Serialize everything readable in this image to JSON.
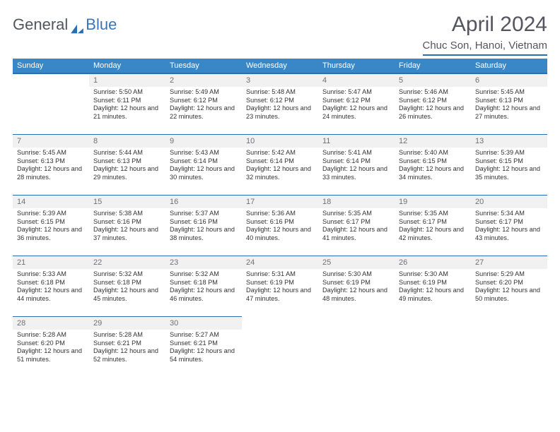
{
  "brand": {
    "part1": "General",
    "part2": "Blue"
  },
  "title": "April 2024",
  "location": "Chuc Son, Hanoi, Vietnam",
  "colors": {
    "header_bg": "#3a87c8",
    "header_border": "#2a6eb4",
    "daynum_bg": "#f1f1f1",
    "text": "#333333",
    "muted": "#555560"
  },
  "weekdays": [
    "Sunday",
    "Monday",
    "Tuesday",
    "Wednesday",
    "Thursday",
    "Friday",
    "Saturday"
  ],
  "start_offset": 1,
  "days": [
    {
      "n": 1,
      "sunrise": "5:50 AM",
      "sunset": "6:11 PM",
      "daylight": "12 hours and 21 minutes."
    },
    {
      "n": 2,
      "sunrise": "5:49 AM",
      "sunset": "6:12 PM",
      "daylight": "12 hours and 22 minutes."
    },
    {
      "n": 3,
      "sunrise": "5:48 AM",
      "sunset": "6:12 PM",
      "daylight": "12 hours and 23 minutes."
    },
    {
      "n": 4,
      "sunrise": "5:47 AM",
      "sunset": "6:12 PM",
      "daylight": "12 hours and 24 minutes."
    },
    {
      "n": 5,
      "sunrise": "5:46 AM",
      "sunset": "6:12 PM",
      "daylight": "12 hours and 26 minutes."
    },
    {
      "n": 6,
      "sunrise": "5:45 AM",
      "sunset": "6:13 PM",
      "daylight": "12 hours and 27 minutes."
    },
    {
      "n": 7,
      "sunrise": "5:45 AM",
      "sunset": "6:13 PM",
      "daylight": "12 hours and 28 minutes."
    },
    {
      "n": 8,
      "sunrise": "5:44 AM",
      "sunset": "6:13 PM",
      "daylight": "12 hours and 29 minutes."
    },
    {
      "n": 9,
      "sunrise": "5:43 AM",
      "sunset": "6:14 PM",
      "daylight": "12 hours and 30 minutes."
    },
    {
      "n": 10,
      "sunrise": "5:42 AM",
      "sunset": "6:14 PM",
      "daylight": "12 hours and 32 minutes."
    },
    {
      "n": 11,
      "sunrise": "5:41 AM",
      "sunset": "6:14 PM",
      "daylight": "12 hours and 33 minutes."
    },
    {
      "n": 12,
      "sunrise": "5:40 AM",
      "sunset": "6:15 PM",
      "daylight": "12 hours and 34 minutes."
    },
    {
      "n": 13,
      "sunrise": "5:39 AM",
      "sunset": "6:15 PM",
      "daylight": "12 hours and 35 minutes."
    },
    {
      "n": 14,
      "sunrise": "5:39 AM",
      "sunset": "6:15 PM",
      "daylight": "12 hours and 36 minutes."
    },
    {
      "n": 15,
      "sunrise": "5:38 AM",
      "sunset": "6:16 PM",
      "daylight": "12 hours and 37 minutes."
    },
    {
      "n": 16,
      "sunrise": "5:37 AM",
      "sunset": "6:16 PM",
      "daylight": "12 hours and 38 minutes."
    },
    {
      "n": 17,
      "sunrise": "5:36 AM",
      "sunset": "6:16 PM",
      "daylight": "12 hours and 40 minutes."
    },
    {
      "n": 18,
      "sunrise": "5:35 AM",
      "sunset": "6:17 PM",
      "daylight": "12 hours and 41 minutes."
    },
    {
      "n": 19,
      "sunrise": "5:35 AM",
      "sunset": "6:17 PM",
      "daylight": "12 hours and 42 minutes."
    },
    {
      "n": 20,
      "sunrise": "5:34 AM",
      "sunset": "6:17 PM",
      "daylight": "12 hours and 43 minutes."
    },
    {
      "n": 21,
      "sunrise": "5:33 AM",
      "sunset": "6:18 PM",
      "daylight": "12 hours and 44 minutes."
    },
    {
      "n": 22,
      "sunrise": "5:32 AM",
      "sunset": "6:18 PM",
      "daylight": "12 hours and 45 minutes."
    },
    {
      "n": 23,
      "sunrise": "5:32 AM",
      "sunset": "6:18 PM",
      "daylight": "12 hours and 46 minutes."
    },
    {
      "n": 24,
      "sunrise": "5:31 AM",
      "sunset": "6:19 PM",
      "daylight": "12 hours and 47 minutes."
    },
    {
      "n": 25,
      "sunrise": "5:30 AM",
      "sunset": "6:19 PM",
      "daylight": "12 hours and 48 minutes."
    },
    {
      "n": 26,
      "sunrise": "5:30 AM",
      "sunset": "6:19 PM",
      "daylight": "12 hours and 49 minutes."
    },
    {
      "n": 27,
      "sunrise": "5:29 AM",
      "sunset": "6:20 PM",
      "daylight": "12 hours and 50 minutes."
    },
    {
      "n": 28,
      "sunrise": "5:28 AM",
      "sunset": "6:20 PM",
      "daylight": "12 hours and 51 minutes."
    },
    {
      "n": 29,
      "sunrise": "5:28 AM",
      "sunset": "6:21 PM",
      "daylight": "12 hours and 52 minutes."
    },
    {
      "n": 30,
      "sunrise": "5:27 AM",
      "sunset": "6:21 PM",
      "daylight": "12 hours and 54 minutes."
    }
  ],
  "labels": {
    "sunrise": "Sunrise:",
    "sunset": "Sunset:",
    "daylight": "Daylight:"
  }
}
